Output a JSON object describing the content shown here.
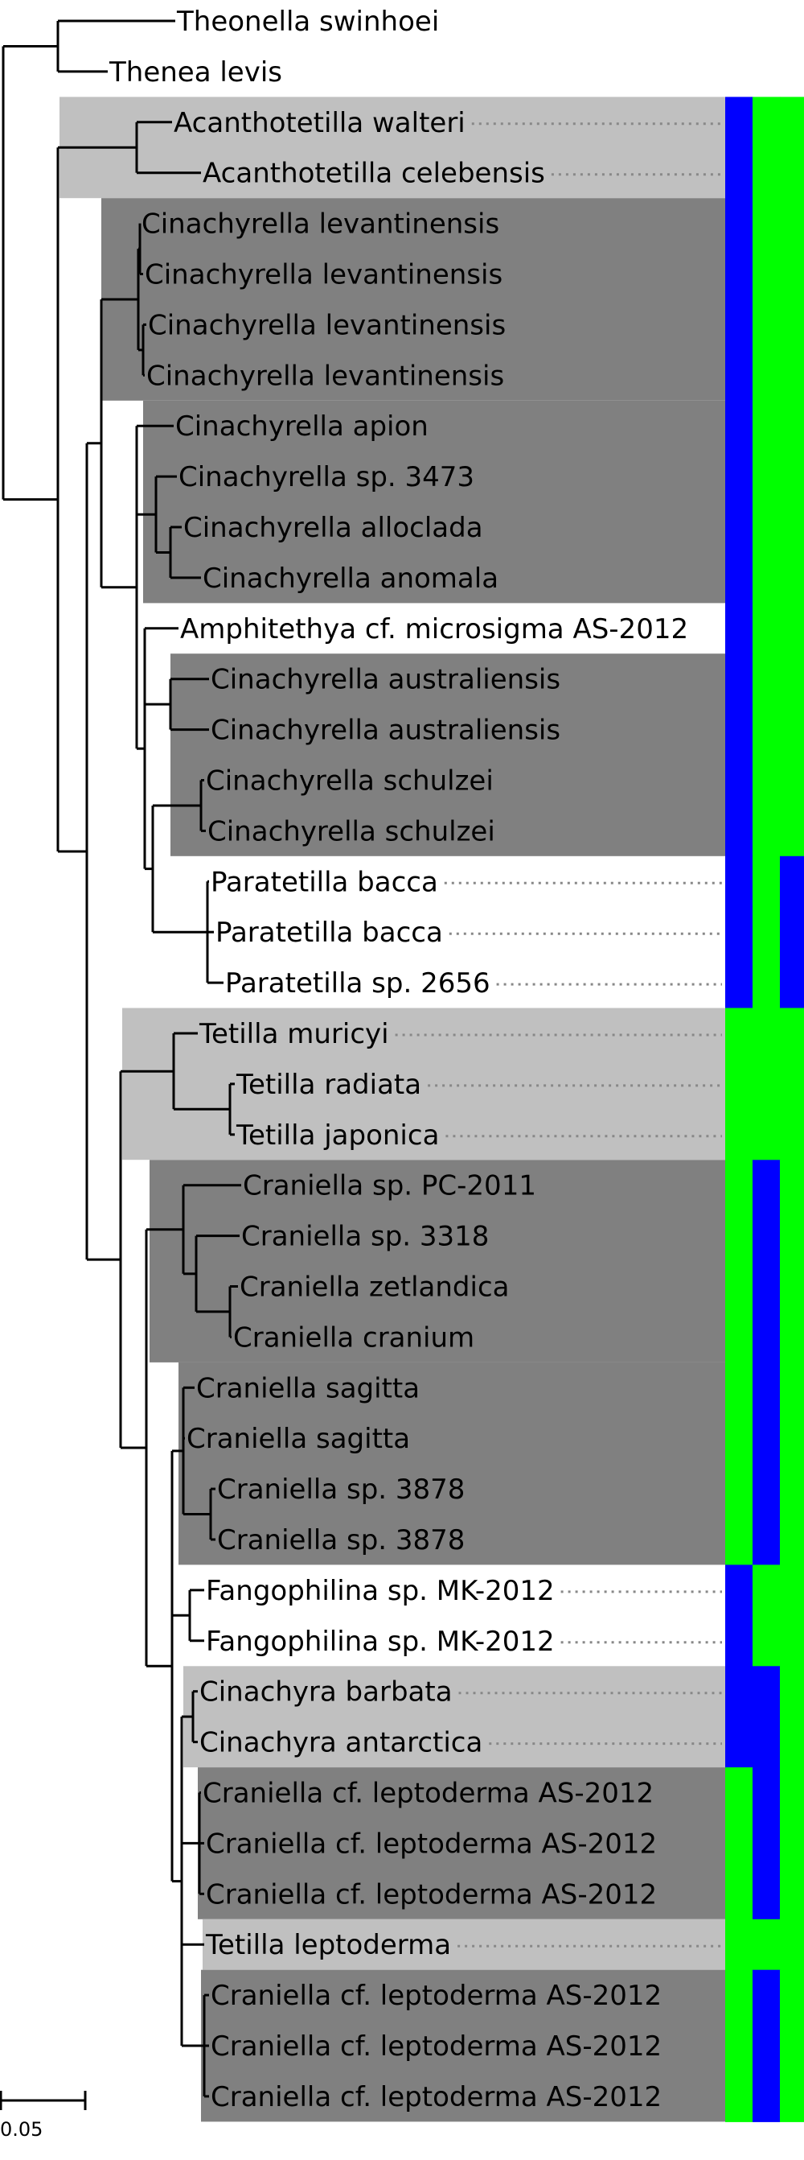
{
  "colors": {
    "clade_light": "#c0c0c0",
    "clade_dark": "#808080",
    "trait_blue": "#0000ff",
    "trait_green": "#00ff00",
    "branch": "#000000",
    "leader": "#888888"
  },
  "scale_bar": {
    "label": "0.05"
  },
  "leaves": [
    {
      "label": "Theonella swinhoei",
      "traits": null
    },
    {
      "label": "Thenea levis",
      "traits": null
    },
    {
      "label": "Acanthotetilla walteri",
      "traits": [
        "blue",
        "green",
        "green"
      ]
    },
    {
      "label": "Acanthotetilla celebensis",
      "traits": [
        "blue",
        "green",
        "green"
      ]
    },
    {
      "label": "Cinachyrella levantinensis",
      "traits": [
        "blue",
        "green",
        "green"
      ]
    },
    {
      "label": "Cinachyrella levantinensis",
      "traits": [
        "blue",
        "green",
        "green"
      ]
    },
    {
      "label": "Cinachyrella levantinensis",
      "traits": [
        "blue",
        "green",
        "green"
      ]
    },
    {
      "label": "Cinachyrella levantinensis",
      "traits": [
        "blue",
        "green",
        "green"
      ]
    },
    {
      "label": "Cinachyrella apion",
      "traits": [
        "blue",
        "green",
        "green"
      ]
    },
    {
      "label": "Cinachyrella sp. 3473",
      "traits": [
        "blue",
        "green",
        "green"
      ]
    },
    {
      "label": "Cinachyrella alloclada",
      "traits": [
        "blue",
        "green",
        "green"
      ]
    },
    {
      "label": "Cinachyrella anomala",
      "traits": [
        "blue",
        "green",
        "green"
      ]
    },
    {
      "label": "Amphitethya cf. microsigma AS-2012",
      "traits": [
        "blue",
        "green",
        "green"
      ]
    },
    {
      "label": "Cinachyrella australiensis",
      "traits": [
        "blue",
        "green",
        "green"
      ]
    },
    {
      "label": "Cinachyrella australiensis",
      "traits": [
        "blue",
        "green",
        "green"
      ]
    },
    {
      "label": "Cinachyrella schulzei",
      "traits": [
        "blue",
        "green",
        "green"
      ]
    },
    {
      "label": "Cinachyrella schulzei",
      "traits": [
        "blue",
        "green",
        "green"
      ]
    },
    {
      "label": "Paratetilla bacca",
      "traits": [
        "blue",
        "green",
        "blue"
      ]
    },
    {
      "label": "Paratetilla bacca",
      "traits": [
        "blue",
        "green",
        "blue"
      ]
    },
    {
      "label": "Paratetilla sp. 2656",
      "traits": [
        "blue",
        "green",
        "blue"
      ]
    },
    {
      "label": "Tetilla muricyi",
      "traits": [
        "green",
        "green",
        "green"
      ]
    },
    {
      "label": "Tetilla radiata",
      "traits": [
        "green",
        "green",
        "green"
      ]
    },
    {
      "label": "Tetilla japonica",
      "traits": [
        "green",
        "green",
        "green"
      ]
    },
    {
      "label": "Craniella sp. PC-2011",
      "traits": [
        "green",
        "blue",
        "green"
      ]
    },
    {
      "label": "Craniella sp. 3318",
      "traits": [
        "green",
        "blue",
        "green"
      ]
    },
    {
      "label": "Craniella zetlandica",
      "traits": [
        "green",
        "blue",
        "green"
      ]
    },
    {
      "label": "Craniella cranium",
      "traits": [
        "green",
        "blue",
        "green"
      ]
    },
    {
      "label": "Craniella sagitta",
      "traits": [
        "green",
        "blue",
        "green"
      ]
    },
    {
      "label": "Craniella sagitta",
      "traits": [
        "green",
        "blue",
        "green"
      ]
    },
    {
      "label": "Craniella sp. 3878",
      "traits": [
        "green",
        "blue",
        "green"
      ]
    },
    {
      "label": "Craniella sp. 3878",
      "traits": [
        "green",
        "blue",
        "green"
      ]
    },
    {
      "label": "Fangophilina sp. MK-2012",
      "traits": [
        "blue",
        "green",
        "green"
      ]
    },
    {
      "label": "Fangophilina sp. MK-2012",
      "traits": [
        "blue",
        "green",
        "green"
      ]
    },
    {
      "label": "Cinachyra barbata",
      "traits": [
        "blue",
        "blue",
        "green"
      ]
    },
    {
      "label": "Cinachyra antarctica",
      "traits": [
        "blue",
        "blue",
        "green"
      ]
    },
    {
      "label": "Craniella cf. leptoderma AS-2012",
      "traits": [
        "green",
        "blue",
        "green"
      ]
    },
    {
      "label": "Craniella cf. leptoderma AS-2012",
      "traits": [
        "green",
        "blue",
        "green"
      ]
    },
    {
      "label": "Craniella cf. leptoderma AS-2012",
      "traits": [
        "green",
        "blue",
        "green"
      ]
    },
    {
      "label": "Tetilla leptoderma",
      "traits": [
        "green",
        "green",
        "green"
      ]
    },
    {
      "label": "Craniella cf. leptoderma AS-2012",
      "traits": [
        "green",
        "blue",
        "green"
      ]
    },
    {
      "label": "Craniella cf. leptoderma AS-2012",
      "traits": [
        "green",
        "blue",
        "green"
      ]
    },
    {
      "label": "Craniella cf. leptoderma AS-2012",
      "traits": [
        "green",
        "blue",
        "green"
      ]
    }
  ]
}
